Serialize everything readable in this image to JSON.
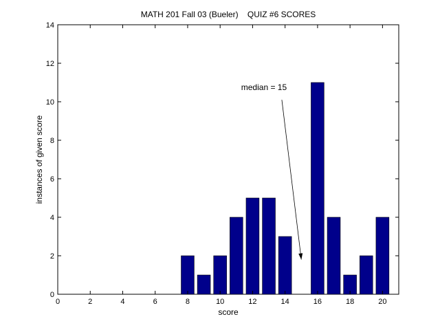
{
  "chart_data": {
    "type": "bar",
    "title": "MATH 201 Fall 03 (Bueler)    QUIZ #6 SCORES",
    "xlabel": "score",
    "ylabel": "instances of given score",
    "xlim": [
      0,
      21
    ],
    "ylim": [
      0,
      14
    ],
    "xticks": [
      0,
      2,
      4,
      6,
      8,
      10,
      12,
      14,
      16,
      18,
      20
    ],
    "yticks": [
      0,
      2,
      4,
      6,
      8,
      10,
      12,
      14
    ],
    "grid": false,
    "bar_color": "#00008B",
    "x": [
      8,
      9,
      10,
      11,
      12,
      13,
      14,
      16,
      17,
      18,
      19,
      20
    ],
    "values": [
      2,
      1,
      2,
      4,
      5,
      5,
      3,
      11,
      4,
      1,
      2,
      4
    ],
    "annotation": {
      "text": "median = 15",
      "text_at": [
        12.7,
        10.6
      ],
      "arrow_from": [
        13.8,
        10.1
      ],
      "arrow_to": [
        15.0,
        1.8
      ]
    }
  }
}
